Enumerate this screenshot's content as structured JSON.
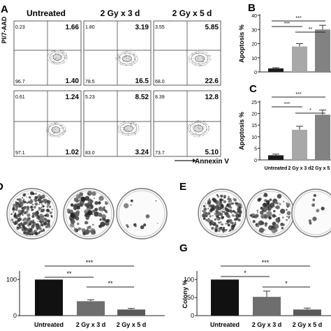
{
  "panels": {
    "A": {
      "letter": "A"
    },
    "B": {
      "letter": "B"
    },
    "C": {
      "letter": "C"
    },
    "D": {
      "letter": "D"
    },
    "E": {
      "letter": "E"
    },
    "F": {
      "letter": ""
    },
    "G": {
      "letter": "G"
    }
  },
  "flow": {
    "column_titles": [
      "Untreated",
      "2 Gy x 3 d",
      "2 Gy x 5 d"
    ],
    "y_axis_label": "PI/7-AAD",
    "x_axis_label": "Annexin V",
    "rows": [
      [
        {
          "ul": "0.23",
          "ur": "1.66",
          "ll": "96.7",
          "lr": "1.40"
        },
        {
          "ul": "1.80",
          "ur": "3.19",
          "ll": "78.5",
          "lr": "16.5"
        },
        {
          "ul": "3.55",
          "ur": "5.85",
          "ll": "68.0",
          "lr": "22.6"
        }
      ],
      [
        {
          "ul": "0.61",
          "ur": "1.24",
          "ll": "97.1",
          "lr": "1.02"
        },
        {
          "ul": "5.23",
          "ur": "8.52",
          "ll": "83.0",
          "lr": "3.24"
        },
        {
          "ul": "8.39",
          "ur": "12.8",
          "ll": "73.7",
          "lr": "5.10"
        }
      ]
    ]
  },
  "colony_images": {
    "D": [
      "untreated-dish",
      "3d-dish",
      "5d-dish"
    ],
    "E": [
      "untreated-dish",
      "3d-dish",
      "5d-dish"
    ]
  },
  "chart_data": [
    {
      "id": "B",
      "type": "bar",
      "categories": [
        "Untreated",
        "2 Gy x 3 d",
        "2 Gy x 5 d"
      ],
      "values": [
        2.5,
        18,
        30
      ],
      "errors": [
        0.5,
        2,
        3
      ],
      "colors": [
        "#1c1c1c",
        "#a8a8a8",
        "#828282"
      ],
      "ylabel": "Apoptosis %",
      "ylim": [
        0,
        40
      ],
      "yticks": [
        "0",
        "10",
        "20",
        "30",
        "40"
      ],
      "show_xlabels": false,
      "significance": [
        {
          "from": 0,
          "to": 2,
          "label": "***"
        },
        {
          "from": 0,
          "to": 1,
          "label": "***"
        },
        {
          "from": 1,
          "to": 2,
          "label": "**"
        }
      ]
    },
    {
      "id": "C",
      "type": "bar",
      "categories": [
        "Untreated",
        "2 Gy x 3 d",
        "2 Gy x 5 d"
      ],
      "values": [
        2,
        13,
        19.5
      ],
      "errors": [
        0.5,
        1.5,
        2
      ],
      "colors": [
        "#1c1c1c",
        "#a8a8a8",
        "#828282"
      ],
      "ylabel": "Apoptosis %",
      "ylim": [
        0,
        25
      ],
      "yticks": [
        "0",
        "5",
        "10",
        "15",
        "20",
        "25"
      ],
      "tick_labels": [
        "Untreated",
        "2 Gy x 3 d",
        "2 Gy x 5 d"
      ],
      "show_xlabels": true,
      "significance": [
        {
          "from": 0,
          "to": 2,
          "label": "***"
        },
        {
          "from": 0,
          "to": 1,
          "label": "***"
        },
        {
          "from": 1,
          "to": 2,
          "label": "*"
        }
      ]
    },
    {
      "id": "F",
      "type": "bar",
      "categories": [
        "Untreated",
        "2 Gy x 3 d",
        "2 Gy x 5 d"
      ],
      "values": [
        100,
        40,
        17
      ],
      "errors": [
        0,
        4,
        3
      ],
      "colors": [
        "#111111",
        "#6e6e6e",
        "#5a5a5a"
      ],
      "ylabel": "",
      "ylim": [
        0,
        120
      ],
      "yticks": [
        "0",
        "100"
      ],
      "tick_labels": [
        "Untreated",
        "2 Gy x 3 d",
        "2 Gy x 5 d"
      ],
      "show_xlabels": true,
      "significance": [
        {
          "from": 0,
          "to": 2,
          "label": "***"
        },
        {
          "from": 0,
          "to": 1,
          "label": "**"
        },
        {
          "from": 1,
          "to": 2,
          "label": "**"
        }
      ]
    },
    {
      "id": "G",
      "type": "bar",
      "categories": [
        "Untreated",
        "2 Gy x 3 d",
        "2 Gy x 5 d"
      ],
      "values": [
        100,
        52,
        17
      ],
      "errors": [
        0,
        16,
        4
      ],
      "colors": [
        "#111111",
        "#6e6e6e",
        "#5a5a5a"
      ],
      "ylabel": "Colony %",
      "ylim": [
        0,
        120
      ],
      "yticks": [
        "0",
        "50",
        "100"
      ],
      "tick_labels": [
        "Untreated",
        "2 Gy x 3 d",
        "2 Gy x 5 d"
      ],
      "show_xlabels": true,
      "significance": [
        {
          "from": 0,
          "to": 2,
          "label": "***"
        },
        {
          "from": 0,
          "to": 1,
          "label": "*"
        },
        {
          "from": 1,
          "to": 2,
          "label": "*"
        }
      ]
    }
  ]
}
